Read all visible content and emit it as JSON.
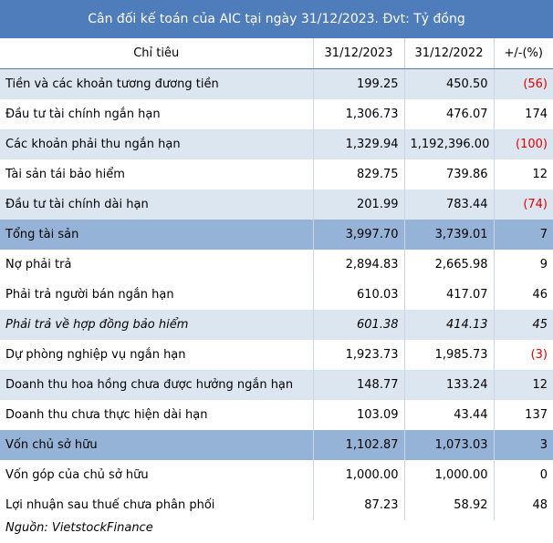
{
  "title": "Cân đối kế toán của AIC tại ngày 31/12/2023. Đvt: Tỷ đồng",
  "table": {
    "header": [
      "Chỉ tiêu",
      "31/12/2023",
      "31/12/2022",
      "+/-(%)"
    ],
    "rows": [
      [
        "Tiền và các khoản tương đương tiền",
        "199.25",
        "450.50",
        "(56)"
      ],
      [
        "Đầu tư tài chính ngắn hạn",
        "1,306.73",
        "476.07",
        "174"
      ],
      [
        "Các khoản phải thu ngắn hạn",
        "1,329.94",
        "1,192,396.00",
        "(100)"
      ],
      [
        "Tài sản tái bảo hiểm",
        "829.75",
        "739.86",
        "12"
      ],
      [
        "Đầu tư tài chính dài hạn",
        "201.99",
        "783.44",
        "(74)"
      ],
      [
        "Tổng tài sản",
        "3,997.70",
        "3,739.01",
        "7"
      ],
      [
        "Nợ phải trả",
        "2,894.83",
        "2,665.98",
        "9"
      ],
      [
        "Phải trả người bán ngắn hạn",
        "610.03",
        "417.07",
        "46"
      ],
      [
        "Phải trả về hợp đồng bảo hiểm",
        "601.38",
        "414.13",
        "45"
      ],
      [
        "Dự phòng nghiệp vụ ngắn hạn",
        "1,923.73",
        "1,985.73",
        "(3)"
      ],
      [
        "Doanh thu hoa hồng chưa được hưởng ngắn hạn",
        "148.77",
        "133.24",
        "12"
      ],
      [
        "Doanh thu chưa thực hiện dài hạn",
        "103.09",
        "43.44",
        "137"
      ],
      [
        "Vốn chủ sở hữu",
        "1,102.87",
        "1,073.03",
        "3"
      ],
      [
        "Vốn góp  của chủ sở hữu",
        "1,000.00",
        "1,000.00",
        "0"
      ],
      [
        "Lợi nhuận sau thuế chưa phân phối",
        "87.23",
        "58.92",
        "48"
      ]
    ]
  },
  "source": "Nguồn: VietstockFinance"
}
